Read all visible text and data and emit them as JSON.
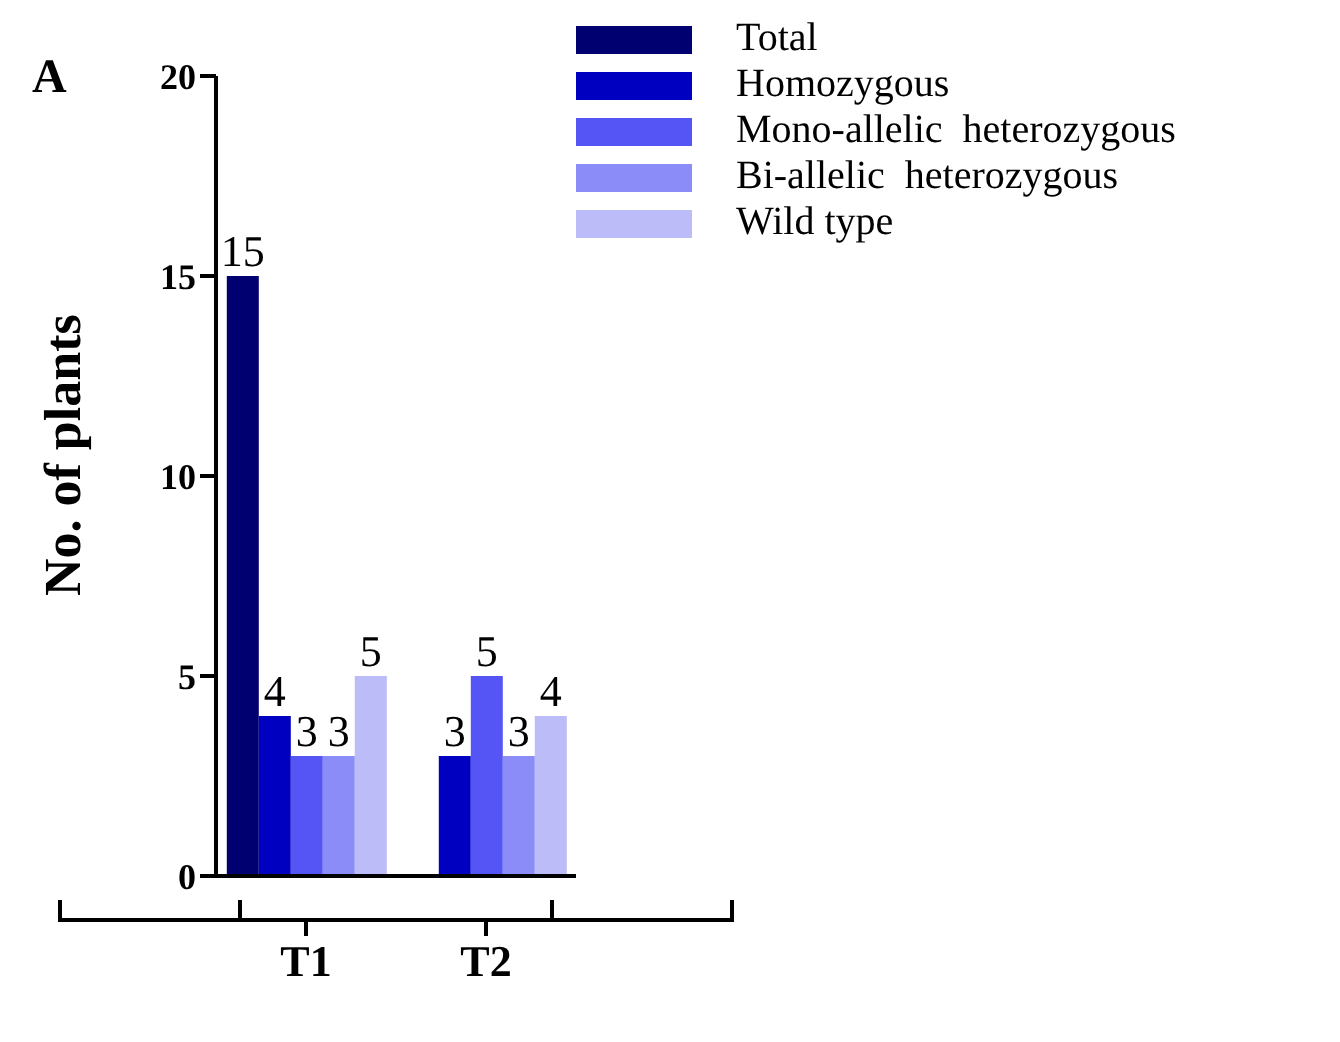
{
  "chart_data": {
    "type": "bar",
    "ylabel": "No. of plants",
    "annotations": [
      "A"
    ],
    "categories": [
      "T1",
      "T2"
    ],
    "series": [
      {
        "name": "Total",
        "color": "#000070",
        "values": [
          15,
          null
        ]
      },
      {
        "name": "Homozygous",
        "color": "#0000c0",
        "values": [
          4,
          3
        ]
      },
      {
        "name": "Mono-allelic  heterozygous",
        "color": "#5555f5",
        "values": [
          3,
          5
        ]
      },
      {
        "name": "Bi-allelic  heterozygous",
        "color": "#8c8cf8",
        "values": [
          3,
          3
        ]
      },
      {
        "name": "Wild type",
        "color": "#bcbcf8",
        "values": [
          5,
          4
        ]
      }
    ],
    "ylim": [
      0,
      20
    ],
    "yticks": [
      0,
      5,
      10,
      15,
      20
    ],
    "data_labels": true,
    "grid": false,
    "legend": "top right"
  }
}
